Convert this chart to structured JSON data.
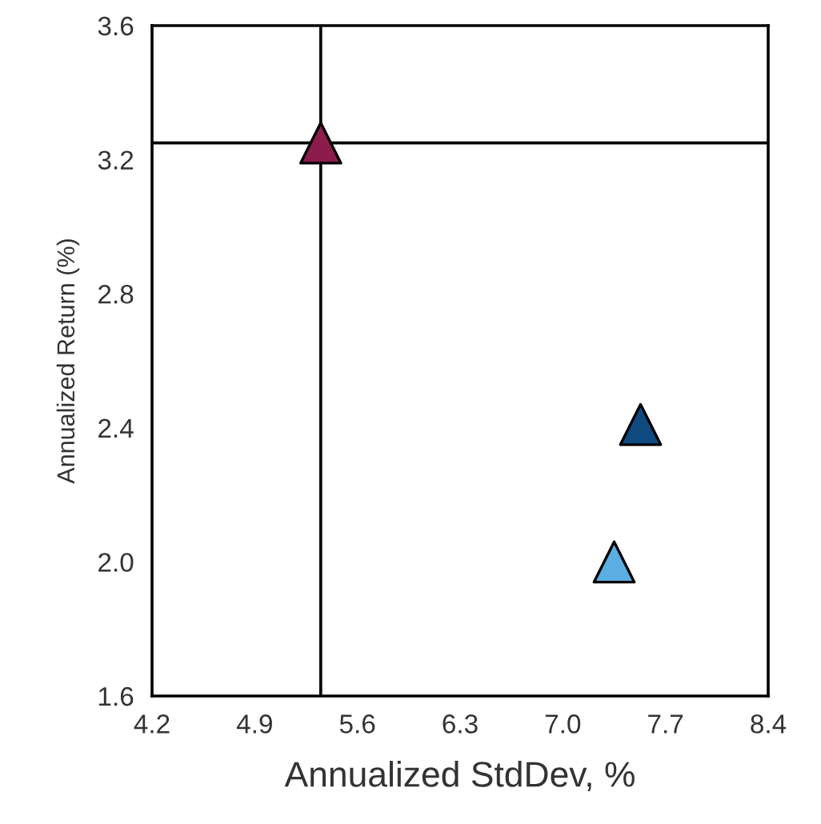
{
  "chart_data": {
    "type": "scatter",
    "xlabel": "Annualized StdDev, %",
    "ylabel": "Annualized Return (%)",
    "x": [
      5.35,
      7.53,
      7.35
    ],
    "series": [
      {
        "values": [
          3.25,
          2.41,
          2.0
        ],
        "colors": [
          "#8c1c4c",
          "#0f4a80",
          "#5aaee2"
        ]
      }
    ],
    "xlim": [
      4.2,
      8.4
    ],
    "xticks": [
      4.2,
      4.9,
      5.6,
      6.3,
      {
        "value": 7,
        "label": "7.0"
      },
      7.7,
      8.4
    ],
    "ylim": [
      1.6,
      3.6
    ],
    "yticks": [
      1.6,
      {
        "value": 2,
        "label": "2.0"
      },
      2.4,
      2.8,
      3.2,
      3.6
    ],
    "ref_lines": [
      {
        "axis": "x",
        "value": 5.35,
        "color": "#000000",
        "line_style": "solid"
      },
      {
        "axis": "y",
        "value": 3.25,
        "color": "#000000",
        "line_style": "solid"
      }
    ],
    "marker": "triangle",
    "grid": false,
    "legend": false
  }
}
